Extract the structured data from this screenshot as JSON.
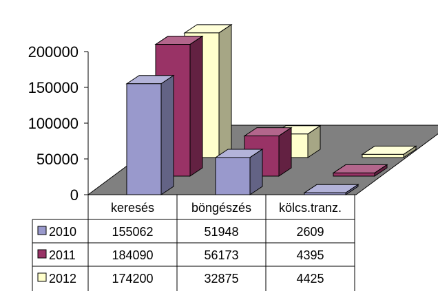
{
  "chart_data": {
    "type": "bar",
    "style": "3d-column-with-data-table",
    "categories": [
      "keresés",
      "böngészés",
      "kölcs.tranz."
    ],
    "series": [
      {
        "name": "2010",
        "values": [
          155062,
          51948,
          2609
        ],
        "color": "#9999cc"
      },
      {
        "name": "2011",
        "values": [
          184090,
          56173,
          4395
        ],
        "color": "#993366"
      },
      {
        "name": "2012",
        "values": [
          174200,
          32875,
          4425
        ],
        "color": "#ffffcc"
      }
    ],
    "ylim": [
      0,
      200000
    ],
    "yticks": [
      "0",
      "50000",
      "100000",
      "150000",
      "200000"
    ],
    "floor_color": "#808080",
    "legend": "data-table"
  }
}
